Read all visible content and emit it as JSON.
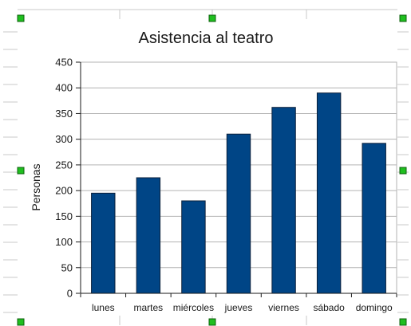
{
  "colors": {
    "bar": "#004586",
    "bar_outline": "#0b1f3a",
    "grid": "#b3b3b3",
    "handle": "#1fbf1f"
  },
  "selection": {
    "handles": "selection-handles"
  },
  "chart_data": {
    "type": "bar",
    "title": "Asistencia al teatro",
    "xlabel": "",
    "ylabel": "Personas",
    "categories": [
      "lunes",
      "martes",
      "miércoles",
      "jueves",
      "viernes",
      "sábado",
      "domingo"
    ],
    "values": [
      195,
      225,
      180,
      310,
      362,
      390,
      292
    ],
    "ylim": [
      0,
      450
    ],
    "yticks": [
      "0",
      "50",
      "100",
      "150",
      "200",
      "250",
      "300",
      "350",
      "400",
      "450"
    ],
    "grid": true,
    "legend": "none"
  }
}
